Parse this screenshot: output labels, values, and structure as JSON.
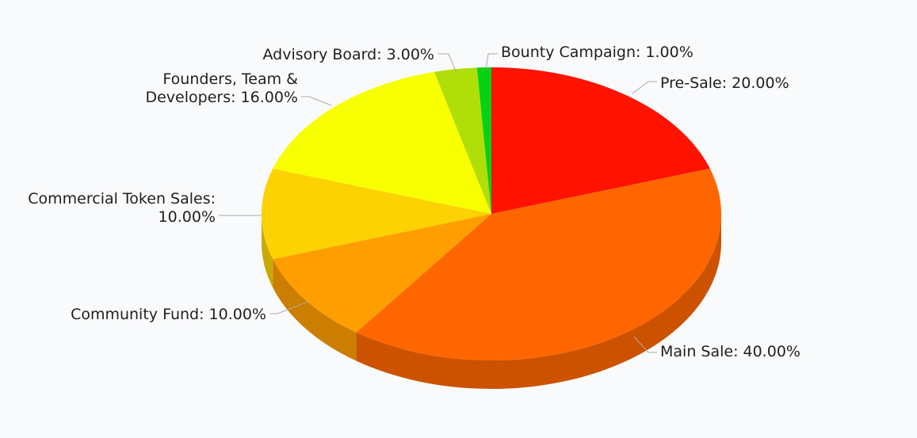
{
  "chart_data": {
    "type": "pie",
    "style": "3d",
    "title": "",
    "slices": [
      {
        "label": "Pre-Sale: 20.00%",
        "name": "Pre-Sale",
        "value": 20.0,
        "color": "#ff1200"
      },
      {
        "label": "Main Sale: 40.00%",
        "name": "Main Sale",
        "value": 40.0,
        "color": "#ff6600"
      },
      {
        "label": "Community Fund: 10.00%",
        "name": "Community Fund",
        "value": 10.0,
        "color": "#ff9e01"
      },
      {
        "label": "Commercial Token Sales:\n10.00%",
        "name": "Commercial Token Sales",
        "value": 10.0,
        "color": "#fcd202"
      },
      {
        "label": "Founders, Team &\nDevelopers: 16.00%",
        "name": "Founders, Team & Developers",
        "value": 16.0,
        "color": "#f8ff01"
      },
      {
        "label": "Advisory Board: 3.00%",
        "name": "Advisory Board",
        "value": 3.0,
        "color": "#b0de09"
      },
      {
        "label": "Bounty Campaign: 1.00%",
        "name": "Bounty Campaign",
        "value": 1.0,
        "color": "#04d215"
      }
    ],
    "legend": "none",
    "grid": false
  }
}
